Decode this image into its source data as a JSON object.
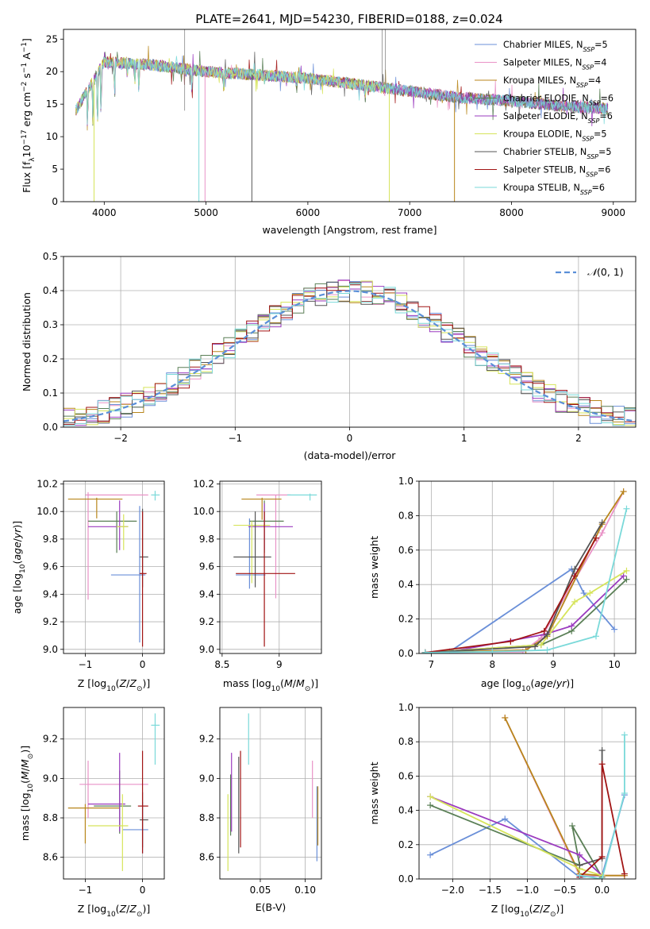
{
  "title": "PLATE=2641, MJD=54230, FIBERID=0188, z=0.024",
  "colors": [
    "#6a8fd8",
    "#e993c7",
    "#b8861b",
    "#5a7f56",
    "#9b3bbf",
    "#d6e45a",
    "#555555",
    "#a11414",
    "#7ad9d9"
  ],
  "chart_data": [
    {
      "id": "spectrum",
      "type": "line",
      "xlabel": "wavelength [Angstrom, rest frame]",
      "ylabel": "Flux [f$_\\lambda$10$^{-17}$ erg cm$^{-2}$ s$^{-1}$ A$^{-1}$]",
      "xlim": [
        3600,
        9220
      ],
      "ylim": [
        0,
        26.5
      ],
      "xticks": [
        4000,
        5000,
        6000,
        7000,
        8000,
        9000
      ],
      "yticks": [
        0,
        5,
        10,
        15,
        20,
        25
      ],
      "legend": "top-right",
      "legend_entries": [
        {
          "text": "Chabrier MILES, N",
          "sub": "SSP",
          "tail": "=5"
        },
        {
          "text": "Salpeter MILES, N",
          "sub": "SSP",
          "tail": "=4"
        },
        {
          "text": "Kroupa MILES, N",
          "sub": "SSP",
          "tail": "=4"
        },
        {
          "text": "Chabrier ELODIE, N",
          "sub": "SSP",
          "tail": "=6"
        },
        {
          "text": "Salpeter ELODIE, N",
          "sub": "SSP",
          "tail": "=6"
        },
        {
          "text": "Kroupa ELODIE, N",
          "sub": "SSP",
          "tail": "=5"
        },
        {
          "text": "Chabrier STELIB, N",
          "sub": "SSP",
          "tail": "=5"
        },
        {
          "text": "Salpeter STELIB, N",
          "sub": "SSP",
          "tail": "=6"
        },
        {
          "text": "Kroupa STELIB, N",
          "sub": "SSP",
          "tail": "=6"
        }
      ],
      "continuum": {
        "x": [
          3720,
          4000,
          4500,
          5000,
          5500,
          6000,
          6500,
          7000,
          7500,
          8000,
          8500,
          8950
        ],
        "y": [
          14,
          21.5,
          21,
          20,
          19.5,
          19,
          18,
          17,
          16,
          15.5,
          14.7,
          14.3
        ]
      }
    },
    {
      "id": "residuals",
      "type": "line",
      "xlabel": "(data-model)/error",
      "ylabel": "Normed distribution",
      "xlim": [
        -2.5,
        2.5
      ],
      "ylim": [
        0,
        0.5
      ],
      "xticks": [
        -2,
        -1,
        0,
        1,
        2
      ],
      "yticks": [
        0.0,
        0.1,
        0.2,
        0.3,
        0.4,
        0.5
      ],
      "legend": "top-right",
      "legend_label": "N(0,1)",
      "bin_width": 0.1
    },
    {
      "id": "age_vs_Z",
      "type": "errorbar",
      "xlabel": "Z [log10(Z/Z⊙)]",
      "ylabel": "age  [log10(age/yr)]",
      "xlim": [
        -1.38,
        0.38
      ],
      "ylim": [
        8.97,
        10.22
      ],
      "xticks": [
        -1,
        0
      ],
      "yticks": [
        9.0,
        9.2,
        9.4,
        9.6,
        9.8,
        10.0,
        10.2
      ],
      "points": [
        {
          "x": -0.05,
          "y": 9.54,
          "x1": -0.55,
          "x2": 0.05,
          "y1": 9.05,
          "y2": 10.04,
          "c": 0
        },
        {
          "x": -0.95,
          "y": 10.12,
          "x1": -1.0,
          "x2": 0.1,
          "y1": 9.36,
          "y2": 10.14,
          "c": 1
        },
        {
          "x": -0.8,
          "y": 10.09,
          "x1": -1.3,
          "x2": -0.35,
          "y1": 9.95,
          "y2": 10.1,
          "c": 2
        },
        {
          "x": -0.45,
          "y": 9.93,
          "x1": -0.95,
          "x2": -0.1,
          "y1": 9.7,
          "y2": 10.0,
          "c": 3
        },
        {
          "x": -0.4,
          "y": 9.89,
          "x1": -0.95,
          "x2": -0.25,
          "y1": 9.72,
          "y2": 10.08,
          "c": 4
        },
        {
          "x": -0.33,
          "y": 9.89,
          "x1": -0.45,
          "x2": -0.25,
          "y1": 9.72,
          "y2": 9.98,
          "c": 5
        },
        {
          "x": 0.0,
          "y": 9.67,
          "x1": -0.05,
          "x2": 0.1,
          "y1": 9.45,
          "y2": 10.02,
          "c": 6
        },
        {
          "x": 0.0,
          "y": 9.55,
          "x1": -0.05,
          "x2": 0.07,
          "y1": 9.02,
          "y2": 10.0,
          "c": 7
        },
        {
          "x": 0.22,
          "y": 10.12,
          "x1": 0.15,
          "x2": 0.3,
          "y1": 10.08,
          "y2": 10.15,
          "c": 8
        }
      ]
    },
    {
      "id": "age_vs_mass",
      "type": "errorbar",
      "xlabel": "mass [log10(M/M⊙)]",
      "ylabel": "",
      "xlim": [
        8.48,
        9.37
      ],
      "ylim": [
        8.97,
        10.22
      ],
      "xticks": [
        8.5,
        9.0
      ],
      "yticks": [
        9.0,
        9.2,
        9.4,
        9.6,
        9.8,
        10.0,
        10.2
      ],
      "points": [
        {
          "x": 8.74,
          "y": 9.54,
          "x1": 8.62,
          "x2": 8.88,
          "y1": 9.44,
          "y2": 9.95,
          "c": 0
        },
        {
          "x": 8.97,
          "y": 10.12,
          "x1": 8.8,
          "x2": 9.1,
          "y1": 9.37,
          "y2": 10.12,
          "c": 1
        },
        {
          "x": 8.85,
          "y": 10.09,
          "x1": 8.67,
          "x2": 9.02,
          "y1": 9.94,
          "y2": 10.1,
          "c": 2
        },
        {
          "x": 8.87,
          "y": 9.93,
          "x1": 8.74,
          "x2": 9.04,
          "y1": 9.7,
          "y2": 10.08,
          "c": 3
        },
        {
          "x": 8.87,
          "y": 9.89,
          "x1": 8.73,
          "x2": 9.12,
          "y1": 9.72,
          "y2": 10.06,
          "c": 4
        },
        {
          "x": 8.76,
          "y": 9.9,
          "x1": 8.6,
          "x2": 8.92,
          "y1": 9.48,
          "y2": 9.93,
          "c": 5
        },
        {
          "x": 8.79,
          "y": 9.67,
          "x1": 8.6,
          "x2": 8.93,
          "y1": 9.45,
          "y2": 10.0,
          "c": 6
        },
        {
          "x": 8.87,
          "y": 9.55,
          "x1": 8.62,
          "x2": 9.14,
          "y1": 9.02,
          "y2": 10.0,
          "c": 7
        },
        {
          "x": 9.27,
          "y": 10.12,
          "x1": 9.07,
          "x2": 9.33,
          "y1": 10.08,
          "y2": 10.13,
          "c": 8
        }
      ]
    },
    {
      "id": "weight_vs_age",
      "type": "line",
      "xlabel": "age  [log10(age/yr)]",
      "ylabel": "mass weight",
      "xlim": [
        6.8,
        10.35
      ],
      "ylim": [
        0,
        1.0
      ],
      "xticks": [
        7,
        8,
        9,
        10
      ],
      "yticks": [
        0.0,
        0.2,
        0.4,
        0.6,
        0.8,
        1.0
      ],
      "series": [
        {
          "c": 0,
          "x": [
            10.0,
            9.5,
            9.3,
            7.3,
            6.9
          ],
          "y": [
            0.14,
            0.35,
            0.49,
            0.01,
            0.005
          ]
        },
        {
          "c": 1,
          "x": [
            10.15,
            9.8,
            8.8,
            8.5,
            6.9
          ],
          "y": [
            0.94,
            0.7,
            0.09,
            0.01,
            0.005
          ]
        },
        {
          "c": 2,
          "x": [
            10.15,
            9.8,
            8.9,
            8.55,
            6.9
          ],
          "y": [
            0.94,
            0.75,
            0.1,
            0.02,
            0.005
          ]
        },
        {
          "c": 3,
          "x": [
            10.2,
            9.3,
            8.8,
            6.9
          ],
          "y": [
            0.43,
            0.13,
            0.05,
            0.005
          ]
        },
        {
          "c": 4,
          "x": [
            10.15,
            9.3,
            8.85,
            7.3,
            6.9
          ],
          "y": [
            0.45,
            0.16,
            0.11,
            0.01,
            0.005
          ]
        },
        {
          "c": 5,
          "x": [
            10.2,
            9.6,
            9.35,
            8.8,
            6.9
          ],
          "y": [
            0.48,
            0.35,
            0.3,
            0.05,
            0.005
          ]
        },
        {
          "c": 6,
          "x": [
            9.8,
            9.35,
            8.9,
            8.7,
            6.9
          ],
          "y": [
            0.76,
            0.49,
            0.11,
            0.04,
            0.005
          ]
        },
        {
          "c": 7,
          "x": [
            9.7,
            9.35,
            8.85,
            8.3,
            6.9
          ],
          "y": [
            0.67,
            0.45,
            0.13,
            0.07,
            0.005
          ]
        },
        {
          "c": 8,
          "x": [
            10.2,
            9.7,
            8.9,
            8.0,
            6.9
          ],
          "y": [
            0.84,
            0.1,
            0.02,
            0.01,
            0.005
          ]
        }
      ]
    },
    {
      "id": "mass_vs_Z",
      "type": "errorbar",
      "xlabel": "Z [log10(Z/Z⊙)]",
      "ylabel": "mass [log10(M/M⊙)]",
      "xlim": [
        -1.38,
        0.38
      ],
      "ylim": [
        8.49,
        9.36
      ],
      "xticks": [
        -1,
        0
      ],
      "yticks": [
        8.6,
        8.8,
        9.0,
        9.2
      ],
      "points": [
        {
          "x": 0.0,
          "y": 8.74,
          "x1": -0.35,
          "x2": 0.1,
          "y1": 8.62,
          "y2": 8.88,
          "c": 0
        },
        {
          "x": -0.95,
          "y": 8.97,
          "x1": -1.1,
          "x2": 0.1,
          "y1": 8.8,
          "y2": 9.09,
          "c": 1
        },
        {
          "x": -1.0,
          "y": 8.85,
          "x1": -1.3,
          "x2": -0.4,
          "y1": 8.67,
          "y2": 8.87,
          "c": 2
        },
        {
          "x": -0.4,
          "y": 8.86,
          "x1": -0.85,
          "x2": -0.2,
          "y1": 8.72,
          "y2": 9.04,
          "c": 3
        },
        {
          "x": -0.4,
          "y": 8.87,
          "x1": -0.95,
          "x2": -0.3,
          "y1": 8.73,
          "y2": 9.13,
          "c": 4
        },
        {
          "x": -0.35,
          "y": 8.76,
          "x1": -0.95,
          "x2": -0.25,
          "y1": 8.53,
          "y2": 8.92,
          "c": 5
        },
        {
          "x": 0.0,
          "y": 8.79,
          "x1": -0.05,
          "x2": 0.1,
          "y1": 8.65,
          "y2": 8.93,
          "c": 6
        },
        {
          "x": 0.0,
          "y": 8.86,
          "x1": -0.08,
          "x2": 0.1,
          "y1": 8.62,
          "y2": 9.14,
          "c": 7
        },
        {
          "x": 0.22,
          "y": 9.27,
          "x1": 0.15,
          "x2": 0.3,
          "y1": 9.07,
          "y2": 9.33,
          "c": 8
        }
      ]
    },
    {
      "id": "mass_vs_ebv",
      "type": "errorbar",
      "xlabel": "E(B-V)",
      "ylabel": "",
      "xlim": [
        0.005,
        0.118
      ],
      "ylim": [
        8.49,
        9.36
      ],
      "xticks": [
        0.05,
        0.1
      ],
      "xticklabels": [
        "0.05",
        "0.10"
      ],
      "yticks": [
        8.6,
        8.8,
        9.0,
        9.2
      ],
      "points": [
        {
          "x": 0.113,
          "y": 8.74,
          "y1": 8.58,
          "y2": 8.96,
          "c": 0
        },
        {
          "x": 0.108,
          "y": 8.97,
          "y1": 8.8,
          "y2": 9.09,
          "c": 1
        },
        {
          "x": 0.114,
          "y": 8.85,
          "y1": 8.66,
          "y2": 8.96,
          "c": 2
        },
        {
          "x": 0.017,
          "y": 8.86,
          "y1": 8.71,
          "y2": 9.02,
          "c": 3
        },
        {
          "x": 0.018,
          "y": 8.87,
          "y1": 8.73,
          "y2": 9.13,
          "c": 4
        },
        {
          "x": 0.014,
          "y": 8.76,
          "y1": 8.53,
          "y2": 8.92,
          "c": 5
        },
        {
          "x": 0.026,
          "y": 8.79,
          "y1": 8.62,
          "y2": 9.11,
          "c": 6
        },
        {
          "x": 0.028,
          "y": 8.86,
          "y1": 8.65,
          "y2": 9.14,
          "c": 7
        },
        {
          "x": 0.037,
          "y": 9.27,
          "y1": 9.07,
          "y2": 9.33,
          "c": 8
        }
      ]
    },
    {
      "id": "weight_vs_Z",
      "type": "line",
      "xlabel": "Z [log10(Z/Z⊙)]",
      "ylabel": "mass weight",
      "xlim": [
        -2.45,
        0.45
      ],
      "ylim": [
        0,
        1.0
      ],
      "xticks": [
        -2.0,
        -1.5,
        -1.0,
        -0.5,
        0.0
      ],
      "xticklabels": [
        "−2.0",
        "−1.5",
        "−1.0",
        "−0.5",
        "0.0"
      ],
      "yticks": [
        0.0,
        0.2,
        0.4,
        0.6,
        0.8,
        1.0
      ],
      "series": [
        {
          "c": 0,
          "x": [
            -2.3,
            -1.3,
            -0.3,
            0.0,
            0.3
          ],
          "y": [
            0.14,
            0.35,
            0.01,
            0.02,
            0.49
          ]
        },
        {
          "c": 1,
          "x": [
            -1.3,
            -0.3,
            0.0,
            0.3
          ],
          "y": [
            0.94,
            0.02,
            0.02,
            0.02
          ]
        },
        {
          "c": 2,
          "x": [
            -1.3,
            -0.3,
            0.0,
            0.3
          ],
          "y": [
            0.94,
            0.03,
            0.02,
            0.02
          ]
        },
        {
          "c": 3,
          "x": [
            -2.3,
            -0.3,
            -0.4,
            0.0
          ],
          "y": [
            0.43,
            0.08,
            0.31,
            0.01
          ]
        },
        {
          "c": 4,
          "x": [
            -2.3,
            -0.3,
            0.0
          ],
          "y": [
            0.48,
            0.14,
            0.02
          ]
        },
        {
          "c": 5,
          "x": [
            -2.3,
            -0.3,
            0.0
          ],
          "y": [
            0.48,
            0.06,
            0.02
          ]
        },
        {
          "c": 6,
          "x": [
            -0.3,
            0.0,
            0.0
          ],
          "y": [
            0.08,
            0.12,
            0.75
          ]
        },
        {
          "c": 7,
          "x": [
            -0.3,
            0.0,
            0.0,
            0.3
          ],
          "y": [
            0.01,
            0.13,
            0.67,
            0.03
          ]
        },
        {
          "c": 8,
          "x": [
            -0.3,
            0.0,
            0.3,
            0.3
          ],
          "y": [
            0.02,
            0.0,
            0.5,
            0.84
          ]
        }
      ]
    }
  ]
}
